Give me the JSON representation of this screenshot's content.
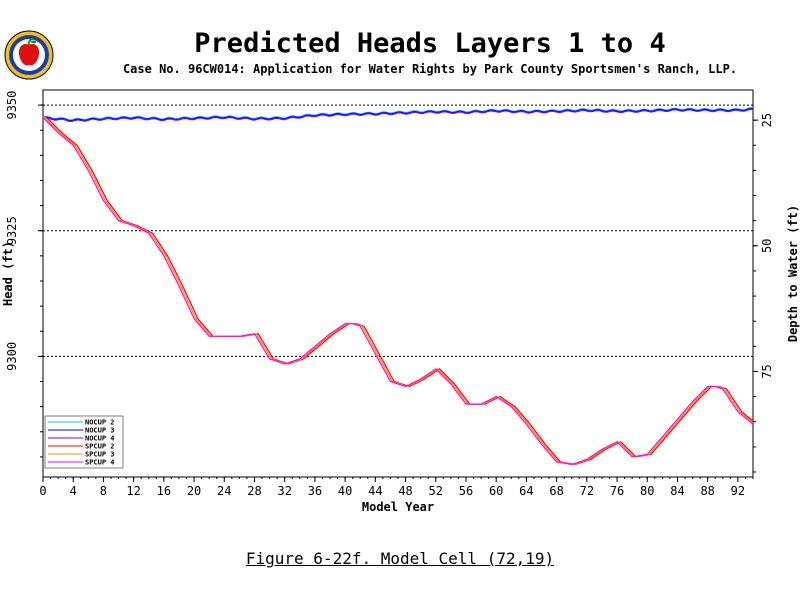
{
  "header": {
    "title": "Predicted Heads Layers 1 to 4",
    "subtitle": "Case No. 96CW014: Application for Water Rights by Park County Sportsmen's Ranch, LLP."
  },
  "caption": "Figure 6-22f.  Model Cell (72,19)",
  "chart_data": {
    "type": "line",
    "title": "Predicted Heads Layers 1 to 4",
    "xlabel": "Model Year",
    "ylabel": "Head (ft)",
    "y2label": "Depth to Water (ft)",
    "xlim": [
      0,
      94
    ],
    "ylim": [
      9276,
      9353
    ],
    "xticks": [
      0,
      4,
      8,
      12,
      16,
      20,
      24,
      28,
      32,
      36,
      40,
      44,
      48,
      52,
      56,
      60,
      64,
      68,
      72,
      76,
      80,
      84,
      88,
      92
    ],
    "yticks": [
      9300,
      9325,
      9350
    ],
    "y2ticks": [
      25,
      50,
      75
    ],
    "y2_offset": 9372,
    "reference_lines": [
      9300,
      9325,
      9350
    ],
    "grid": false,
    "legend_position": "bottom-left",
    "series": [
      {
        "name": "NOCUP 2",
        "color": "#00c8ff",
        "group": "upper"
      },
      {
        "name": "NOCUP 3",
        "color": "#0000ff",
        "group": "upper"
      },
      {
        "name": "NOCUP 4",
        "color": "#8000ff",
        "group": "upper"
      },
      {
        "name": "SPCUP 2",
        "color": "#ff0000",
        "group": "lower"
      },
      {
        "name": "SPCUP 3",
        "color": "#ff9000",
        "group": "lower"
      },
      {
        "name": "SPCUP 4",
        "color": "#ff00ff",
        "group": "lower"
      }
    ],
    "upper_curve": {
      "x": [
        0,
        4,
        8,
        12,
        16,
        20,
        24,
        28,
        32,
        36,
        40,
        44,
        48,
        52,
        56,
        60,
        64,
        68,
        72,
        76,
        80,
        84,
        88,
        92,
        94
      ],
      "y": [
        9347.5,
        9347.0,
        9347.3,
        9347.5,
        9347.2,
        9347.4,
        9347.6,
        9347.3,
        9347.4,
        9348.0,
        9348.2,
        9348.3,
        9348.5,
        9348.7,
        9348.6,
        9348.9,
        9348.7,
        9348.8,
        9349.0,
        9348.8,
        9348.9,
        9349.1,
        9349.0,
        9349.0,
        9349.2
      ]
    },
    "lower_curve": {
      "x": [
        0,
        2,
        4,
        6,
        8,
        10,
        12,
        14,
        16,
        18,
        20,
        22,
        24,
        26,
        28,
        30,
        32,
        34,
        36,
        38,
        40,
        41,
        42,
        44,
        46,
        48,
        50,
        52,
        54,
        56,
        58,
        60,
        62,
        64,
        66,
        68,
        70,
        72,
        74,
        76,
        78,
        80,
        82,
        84,
        86,
        88,
        89,
        90,
        92,
        94
      ],
      "y": [
        9347.5,
        9344.5,
        9342.0,
        9337.0,
        9331.0,
        9327.0,
        9326.0,
        9324.5,
        9320.0,
        9314.0,
        9307.5,
        9304.0,
        9304.0,
        9304.0,
        9304.5,
        9299.5,
        9298.5,
        9299.5,
        9302.0,
        9304.5,
        9306.5,
        9306.5,
        9306.0,
        9300.5,
        9295.0,
        9294.0,
        9295.5,
        9297.5,
        9294.5,
        9290.5,
        9290.5,
        9292.0,
        9290.0,
        9286.5,
        9282.5,
        9279.0,
        9278.5,
        9279.5,
        9281.5,
        9283.0,
        9280.0,
        9280.5,
        9284.0,
        9287.5,
        9291.0,
        9294.0,
        9294.0,
        9293.5,
        9289.0,
        9286.5
      ]
    }
  }
}
